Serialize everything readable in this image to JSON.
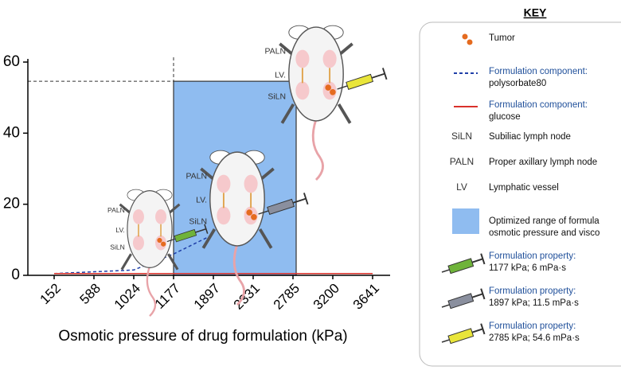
{
  "chart_data": {
    "type": "line",
    "x_label": "Osmotic pressure of drug formulation (kPa)",
    "categories": [
      "152",
      "588",
      "1024",
      "1177",
      "1897",
      "2331",
      "2785",
      "3200",
      "3641"
    ],
    "ylim": [
      0,
      60
    ],
    "yticks": [
      0,
      20,
      40,
      60
    ],
    "series": [
      {
        "name": "polysorbate80",
        "color": "#1f3fa8",
        "dash": true,
        "values": [
          0.5,
          1,
          1.5,
          6,
          11.5,
          null,
          54.6,
          null,
          null
        ]
      },
      {
        "name": "glucose",
        "color": "#d9312b",
        "dash": false,
        "values": [
          0.5,
          0.5,
          0.5,
          0.5,
          0.5,
          0.5,
          0.5,
          0.5,
          0.5
        ]
      }
    ],
    "region": {
      "from": 3,
      "to": 6,
      "ymax": 54.6,
      "color": "#8fbcf0"
    },
    "mouse_labels": [
      "PALN",
      "LV.",
      "SiLN"
    ],
    "syringe_colors": [
      "#6fb33a",
      "#8a8f9e",
      "#e9e53a"
    ]
  },
  "key": {
    "title": "KEY",
    "items": [
      {
        "lines": [
          "Tumor"
        ]
      },
      {
        "lines": [
          "Formulation component:",
          "polysorbate80"
        ]
      },
      {
        "lines": [
          "Formulation component:",
          "glucose"
        ]
      },
      {
        "abbr": "SiLN",
        "lines": [
          "Subiliac lymph node"
        ]
      },
      {
        "abbr": "PALN",
        "lines": [
          "Proper axillary lymph node"
        ]
      },
      {
        "abbr": "LV",
        "lines": [
          "Lymphatic vessel"
        ]
      },
      {
        "lines": [
          "Optimized range of formula",
          "osmotic pressure and visco"
        ]
      },
      {
        "lines": [
          "Formulation property:",
          "1177 kPa; 6 mPa·s"
        ]
      },
      {
        "lines": [
          "Formulation property:",
          "1897 kPa; 11.5 mPa·s"
        ]
      },
      {
        "lines": [
          "Formulation property:",
          "2785 kPa; 54.6 mPa·s"
        ]
      }
    ]
  }
}
